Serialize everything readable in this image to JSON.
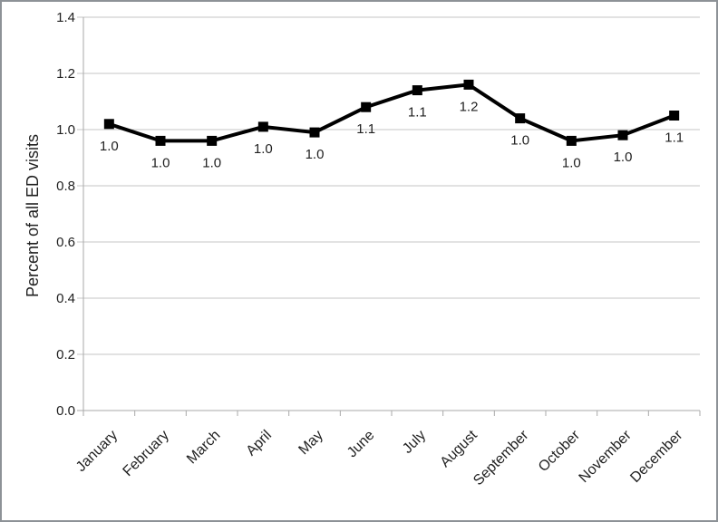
{
  "window": {
    "background": "#ffffff",
    "border_color": "#8d9297"
  },
  "chart_data": {
    "type": "line",
    "title": "",
    "xlabel": "",
    "ylabel": "Percent of all ED visits",
    "categories": [
      "January",
      "February",
      "March",
      "April",
      "May",
      "June",
      "July",
      "August",
      "September",
      "October",
      "November",
      "December"
    ],
    "series": [
      {
        "name": "Percent of all ED visits",
        "values": [
          1.02,
          0.96,
          0.96,
          1.01,
          0.99,
          1.08,
          1.14,
          1.16,
          1.04,
          0.96,
          0.98,
          1.05
        ]
      }
    ],
    "point_labels": [
      "1.0",
      "1.0",
      "1.0",
      "1.0",
      "1.0",
      "1.1",
      "1.1",
      "1.2",
      "1.0",
      "1.0",
      "1.0",
      "1.1"
    ],
    "ylim": [
      0.0,
      1.4
    ],
    "ytick_step": 0.2,
    "ytick_labels": [
      "0.0",
      "0.2",
      "0.4",
      "0.6",
      "0.8",
      "1.0",
      "1.2",
      "1.4"
    ],
    "grid": true,
    "legend": "none",
    "marker": "square",
    "marker_size": 11,
    "x_label_rotation": -45,
    "colors": {
      "line": "#000000",
      "marker": "#000000",
      "gridline": "#c6c6c6",
      "axis": "#a9a9a9",
      "text": "#1f1f1f"
    }
  }
}
